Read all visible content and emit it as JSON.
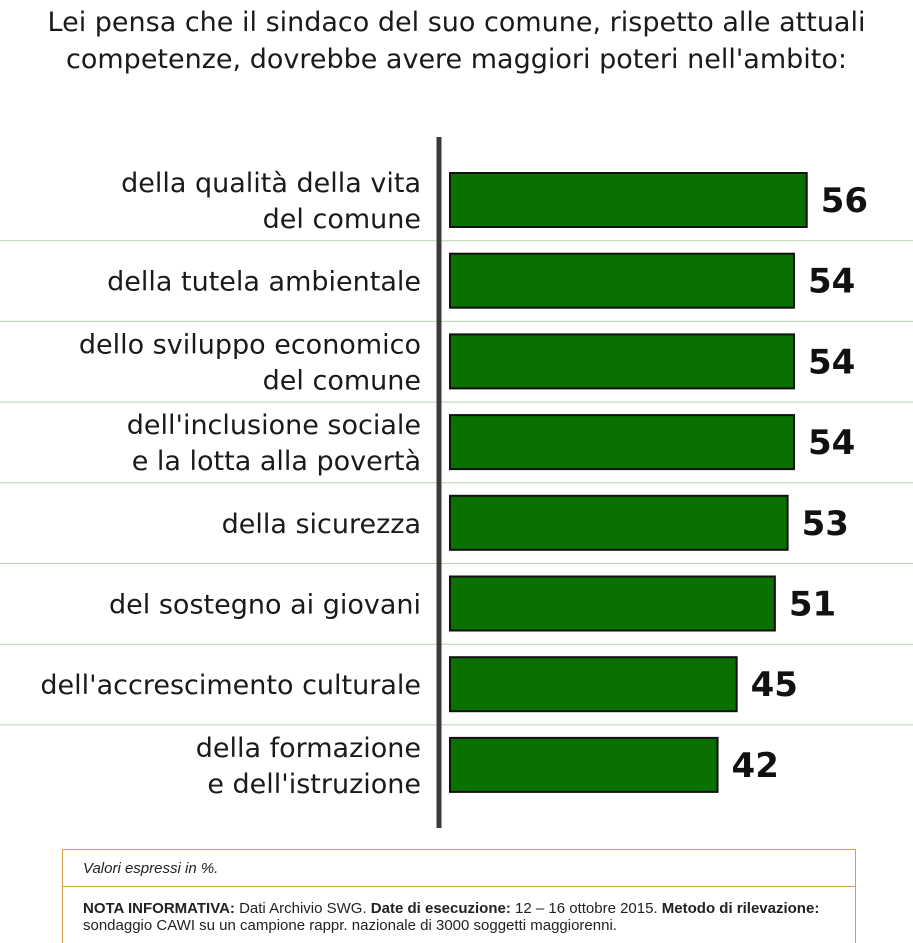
{
  "chart_data": {
    "type": "bar",
    "orientation": "horizontal",
    "title": "Lei pensa che il sindaco del suo comune, rispetto alle attuali competenze, dovrebbe avere maggiori poteri nell'ambito:",
    "title_lines": [
      "Lei pensa che il sindaco del suo comune, rispetto alle attuali",
      "competenze, dovrebbe avere maggiori poteri nell'ambito:"
    ],
    "categories": [
      [
        "della qualità della vita",
        "del comune"
      ],
      [
        "della tutela ambientale"
      ],
      [
        "dello sviluppo economico",
        "del comune"
      ],
      [
        "dell'inclusione sociale",
        "e la lotta alla povertà"
      ],
      [
        "della sicurezza"
      ],
      [
        "del sostegno ai giovani"
      ],
      [
        "dell'accrescimento culturale"
      ],
      [
        "della formazione",
        "e dell'istruzione"
      ]
    ],
    "values": [
      56,
      54,
      54,
      54,
      53,
      51,
      45,
      42
    ],
    "bar_color": "#0a7000",
    "xlabel": "",
    "ylabel": "",
    "grid": false,
    "legend": "none"
  },
  "footer": {
    "units_note": "Valori espressi in %.",
    "nota_label": "NOTA INFORMATIVA:",
    "nota_text": " Dati Archivio SWG. ",
    "date_label": "Date di esecuzione:",
    "date_text": " 12 – 16 ottobre 2015. ",
    "metodo_label": "Metodo di rilevazione:",
    "metodo_text": " sondaggio CAWI su un campione rappr. nazionale di 3000 soggetti maggiorenni."
  }
}
